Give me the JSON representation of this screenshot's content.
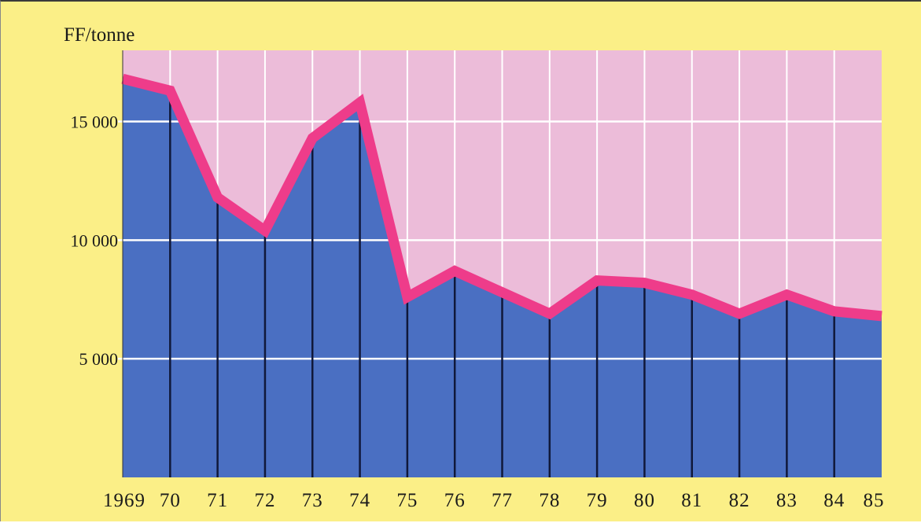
{
  "chart_data": {
    "type": "area",
    "ylabel": "FF/tonne",
    "categories": [
      "1969",
      "70",
      "71",
      "72",
      "73",
      "74",
      "75",
      "76",
      "77",
      "78",
      "79",
      "80",
      "81",
      "82",
      "83",
      "84",
      "85"
    ],
    "values": [
      16800,
      16300,
      11800,
      10400,
      14300,
      15800,
      7600,
      8700,
      7800,
      6900,
      8300,
      8200,
      7700,
      6900,
      7700,
      7000,
      6800
    ],
    "yticks": [
      {
        "value": 15000,
        "label": "15 000"
      },
      {
        "value": 10000,
        "label": "10 000"
      },
      {
        "value": 5000,
        "label": "5 000"
      }
    ],
    "ylim": [
      0,
      18000
    ],
    "grid": true,
    "colors": {
      "background": "#fbef87",
      "plot_background": "#ecbcd9",
      "area_fill": "#4a6fc2",
      "line": "#ee3c8a",
      "gridline": "#ffffff",
      "year_divider": "#10183a"
    }
  }
}
